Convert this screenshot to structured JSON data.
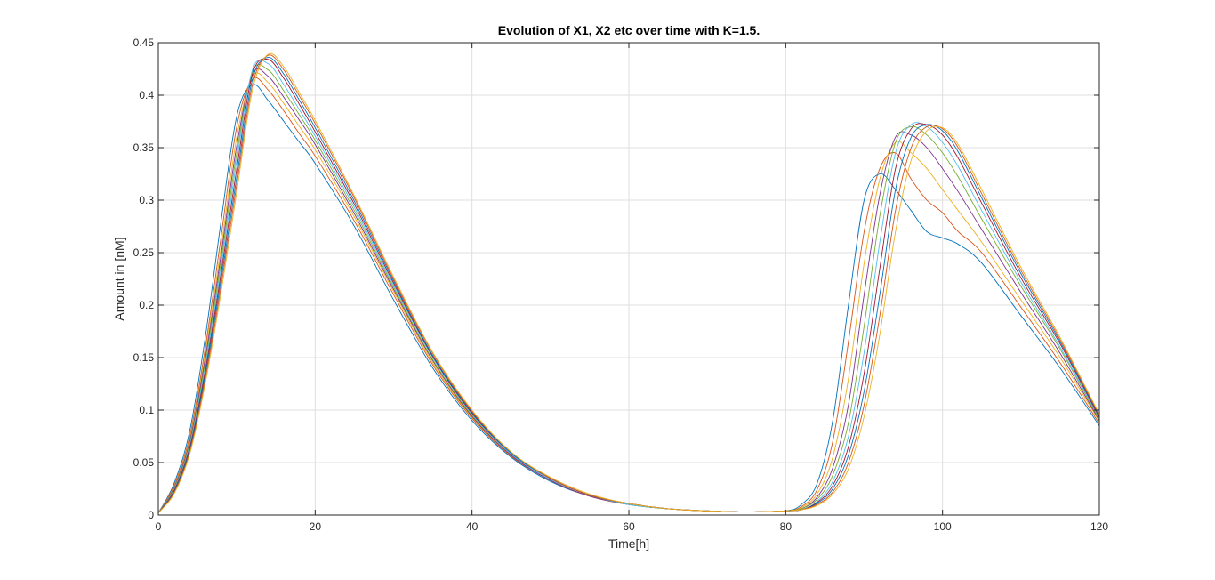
{
  "chart_data": {
    "type": "line",
    "title": "Evolution of X1, X2 etc over time with K=1.5.",
    "xlabel": "Time[h]",
    "ylabel": "Amount in [nM]",
    "xlim": [
      0,
      120
    ],
    "ylim": [
      0,
      0.45
    ],
    "xticks": [
      "0",
      "20",
      "40",
      "60",
      "80",
      "100",
      "120"
    ],
    "yticks": [
      "0",
      "0.05",
      "0.1",
      "0.15",
      "0.2",
      "0.25",
      "0.3",
      "0.35",
      "0.4",
      "0.45"
    ],
    "grid": true,
    "legend": "none",
    "colors": [
      "#0072BD",
      "#D95319",
      "#EDB120",
      "#7E2F8E",
      "#77AC30",
      "#4DBEEE",
      "#A2142F"
    ],
    "x": [
      0,
      2,
      4,
      6,
      8,
      10,
      12,
      14,
      16,
      18,
      20,
      25,
      30,
      35,
      40,
      45,
      50,
      55,
      60,
      65,
      70,
      75,
      80,
      82,
      84,
      86,
      88,
      90,
      92,
      94,
      96,
      98,
      100,
      102,
      105,
      110,
      115,
      120
    ],
    "series": [
      {
        "values": [
          0.002,
          0.03,
          0.08,
          0.17,
          0.28,
          0.38,
          0.41,
          0.395,
          0.375,
          0.355,
          0.335,
          0.275,
          0.205,
          0.14,
          0.09,
          0.055,
          0.032,
          0.018,
          0.01,
          0.006,
          0.004,
          0.003,
          0.004,
          0.01,
          0.03,
          0.09,
          0.2,
          0.3,
          0.325,
          0.31,
          0.29,
          0.27,
          0.264,
          0.258,
          0.24,
          0.19,
          0.14,
          0.085
        ]
      },
      {
        "values": [
          0.002,
          0.028,
          0.075,
          0.16,
          0.265,
          0.37,
          0.415,
          0.405,
          0.385,
          0.363,
          0.342,
          0.28,
          0.21,
          0.143,
          0.092,
          0.056,
          0.033,
          0.018,
          0.01,
          0.006,
          0.004,
          0.003,
          0.004,
          0.008,
          0.024,
          0.07,
          0.165,
          0.27,
          0.33,
          0.345,
          0.32,
          0.3,
          0.288,
          0.27,
          0.25,
          0.198,
          0.145,
          0.087
        ]
      },
      {
        "values": [
          0.002,
          0.027,
          0.072,
          0.155,
          0.255,
          0.36,
          0.418,
          0.412,
          0.392,
          0.37,
          0.348,
          0.284,
          0.213,
          0.145,
          0.093,
          0.057,
          0.033,
          0.018,
          0.01,
          0.006,
          0.004,
          0.003,
          0.004,
          0.007,
          0.02,
          0.055,
          0.13,
          0.24,
          0.32,
          0.355,
          0.345,
          0.33,
          0.31,
          0.29,
          0.26,
          0.205,
          0.15,
          0.089
        ]
      },
      {
        "values": [
          0.002,
          0.026,
          0.07,
          0.15,
          0.248,
          0.352,
          0.42,
          0.418,
          0.398,
          0.376,
          0.353,
          0.287,
          0.215,
          0.147,
          0.094,
          0.057,
          0.033,
          0.018,
          0.01,
          0.006,
          0.004,
          0.003,
          0.004,
          0.006,
          0.017,
          0.045,
          0.105,
          0.21,
          0.305,
          0.36,
          0.362,
          0.35,
          0.33,
          0.308,
          0.272,
          0.212,
          0.154,
          0.09
        ]
      },
      {
        "values": [
          0.002,
          0.025,
          0.068,
          0.146,
          0.242,
          0.345,
          0.422,
          0.424,
          0.404,
          0.381,
          0.357,
          0.29,
          0.217,
          0.148,
          0.095,
          0.058,
          0.034,
          0.019,
          0.01,
          0.006,
          0.004,
          0.003,
          0.004,
          0.006,
          0.015,
          0.038,
          0.088,
          0.18,
          0.285,
          0.355,
          0.37,
          0.362,
          0.345,
          0.322,
          0.282,
          0.218,
          0.158,
          0.091
        ]
      },
      {
        "values": [
          0.002,
          0.024,
          0.066,
          0.142,
          0.236,
          0.338,
          0.424,
          0.43,
          0.41,
          0.386,
          0.361,
          0.293,
          0.219,
          0.15,
          0.096,
          0.058,
          0.034,
          0.019,
          0.01,
          0.006,
          0.004,
          0.003,
          0.004,
          0.005,
          0.013,
          0.032,
          0.075,
          0.155,
          0.26,
          0.345,
          0.372,
          0.37,
          0.355,
          0.332,
          0.29,
          0.222,
          0.16,
          0.092
        ]
      },
      {
        "values": [
          0.002,
          0.023,
          0.064,
          0.138,
          0.23,
          0.33,
          0.42,
          0.434,
          0.416,
          0.391,
          0.365,
          0.296,
          0.221,
          0.151,
          0.097,
          0.059,
          0.035,
          0.019,
          0.011,
          0.006,
          0.004,
          0.003,
          0.004,
          0.005,
          0.012,
          0.028,
          0.065,
          0.135,
          0.235,
          0.33,
          0.368,
          0.372,
          0.362,
          0.34,
          0.297,
          0.226,
          0.163,
          0.093
        ]
      },
      {
        "values": [
          0.002,
          0.022,
          0.062,
          0.134,
          0.224,
          0.322,
          0.415,
          0.436,
          0.42,
          0.395,
          0.369,
          0.299,
          0.223,
          0.152,
          0.098,
          0.059,
          0.035,
          0.019,
          0.011,
          0.006,
          0.004,
          0.003,
          0.004,
          0.005,
          0.011,
          0.025,
          0.057,
          0.118,
          0.21,
          0.31,
          0.36,
          0.372,
          0.366,
          0.346,
          0.302,
          0.23,
          0.165,
          0.094
        ]
      },
      {
        "values": [
          0.002,
          0.021,
          0.06,
          0.13,
          0.218,
          0.315,
          0.41,
          0.438,
          0.424,
          0.399,
          0.373,
          0.302,
          0.225,
          0.154,
          0.099,
          0.06,
          0.035,
          0.019,
          0.011,
          0.006,
          0.004,
          0.003,
          0.004,
          0.005,
          0.01,
          0.022,
          0.05,
          0.105,
          0.19,
          0.29,
          0.35,
          0.37,
          0.368,
          0.35,
          0.306,
          0.233,
          0.167,
          0.095
        ]
      },
      {
        "values": [
          0.002,
          0.02,
          0.058,
          0.126,
          0.212,
          0.308,
          0.405,
          0.439,
          0.427,
          0.402,
          0.376,
          0.304,
          0.227,
          0.155,
          0.1,
          0.06,
          0.036,
          0.02,
          0.011,
          0.006,
          0.004,
          0.003,
          0.004,
          0.005,
          0.009,
          0.02,
          0.044,
          0.094,
          0.172,
          0.27,
          0.338,
          0.366,
          0.369,
          0.353,
          0.31,
          0.236,
          0.169,
          0.096
        ]
      }
    ]
  }
}
